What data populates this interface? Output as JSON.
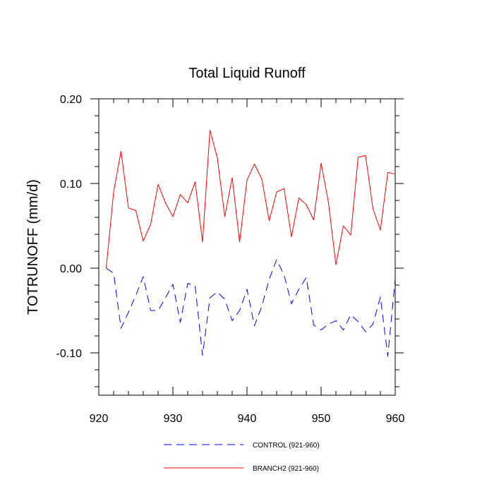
{
  "chart_data": {
    "type": "line",
    "title": "Total Liquid Runoff",
    "xlabel": "",
    "ylabel": "TOTRUNOFF  (mm/d)",
    "xlim": [
      920,
      960
    ],
    "ylim": [
      -0.15,
      0.2
    ],
    "x_ticks": [
      920,
      930,
      940,
      950,
      960
    ],
    "x_tick_labels": [
      "920",
      "930",
      "940",
      "950",
      "960"
    ],
    "y_ticks": [
      -0.1,
      0.0,
      0.1,
      0.2
    ],
    "y_tick_labels": [
      "-0.10",
      "0.00",
      "0.10",
      "0.20"
    ],
    "grid": false,
    "legend_position": "bottom",
    "series": [
      {
        "name": "CONTROL (921-960)",
        "color": "#0000ff",
        "line_style": "dashed",
        "x": [
          921,
          922,
          923,
          924,
          925,
          926,
          927,
          928,
          929,
          930,
          931,
          932,
          933,
          934,
          935,
          936,
          937,
          938,
          939,
          940,
          941,
          942,
          943,
          944,
          945,
          946,
          947,
          948,
          949,
          950,
          951,
          952,
          953,
          954,
          955,
          956,
          957,
          958,
          959,
          960
        ],
        "values": [
          0.0,
          -0.006,
          -0.071,
          -0.052,
          -0.032,
          -0.01,
          -0.05,
          -0.05,
          -0.035,
          -0.019,
          -0.064,
          -0.018,
          -0.021,
          -0.103,
          -0.035,
          -0.028,
          -0.037,
          -0.062,
          -0.05,
          -0.025,
          -0.068,
          -0.045,
          -0.013,
          0.01,
          -0.008,
          -0.042,
          -0.025,
          -0.011,
          -0.067,
          -0.073,
          -0.066,
          -0.062,
          -0.073,
          -0.055,
          -0.063,
          -0.075,
          -0.066,
          -0.034,
          -0.104,
          -0.013
        ]
      },
      {
        "name": "BRANCH2 (921-960)",
        "color": "#ff0000",
        "line_style": "solid",
        "x": [
          921,
          922,
          923,
          924,
          925,
          926,
          927,
          928,
          929,
          930,
          931,
          932,
          933,
          934,
          935,
          936,
          937,
          938,
          939,
          940,
          941,
          942,
          943,
          944,
          945,
          946,
          947,
          948,
          949,
          950,
          951,
          952,
          953,
          954,
          955,
          956,
          957,
          958,
          959,
          960
        ],
        "values": [
          0.0,
          0.09,
          0.138,
          0.071,
          0.068,
          0.032,
          0.052,
          0.099,
          0.077,
          0.061,
          0.087,
          0.077,
          0.102,
          0.031,
          0.163,
          0.13,
          0.061,
          0.107,
          0.031,
          0.104,
          0.123,
          0.105,
          0.056,
          0.09,
          0.094,
          0.037,
          0.083,
          0.075,
          0.057,
          0.124,
          0.077,
          0.004,
          0.05,
          0.039,
          0.131,
          0.133,
          0.07,
          0.045,
          0.113,
          0.111
        ]
      }
    ]
  }
}
